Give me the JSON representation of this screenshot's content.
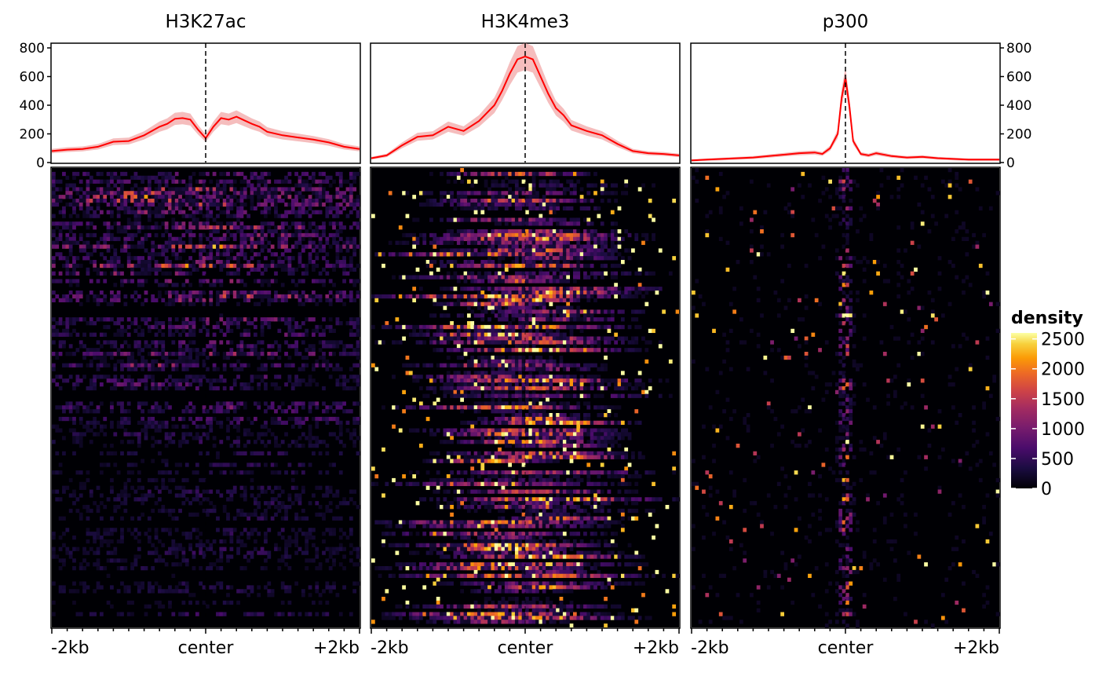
{
  "chart_data": [
    {
      "type": "line",
      "title": "H3K27ac",
      "xlabel": "",
      "ylabel": "",
      "x_tick_labels": [
        "-2kb",
        "center",
        "+2kb"
      ],
      "x_range": [
        -2000,
        2000
      ],
      "ylim": [
        0,
        800
      ],
      "y_ticks": [
        0,
        200,
        400,
        600,
        800
      ],
      "y_axis_side": "left",
      "center_marker": "dashed vertical line at center",
      "line_color": "#ff0000",
      "band_color": "#f2a7a7",
      "x": [
        -2000,
        -1800,
        -1600,
        -1400,
        -1200,
        -1000,
        -800,
        -600,
        -500,
        -400,
        -300,
        -200,
        -100,
        0,
        100,
        200,
        300,
        400,
        500,
        600,
        700,
        800,
        1000,
        1200,
        1400,
        1600,
        1800,
        2000
      ],
      "y": [
        80,
        90,
        95,
        110,
        145,
        150,
        190,
        250,
        270,
        305,
        310,
        300,
        230,
        170,
        250,
        310,
        300,
        320,
        295,
        270,
        250,
        215,
        190,
        175,
        160,
        140,
        110,
        95
      ],
      "heatmap_profile": "diffuse"
    },
    {
      "type": "line",
      "title": "H3K4me3",
      "xlabel": "",
      "ylabel": "",
      "x_tick_labels": [
        "-2kb",
        "center",
        "+2kb"
      ],
      "x_range": [
        -2000,
        2000
      ],
      "ylim": [
        0,
        800
      ],
      "y_ticks": [
        0,
        200,
        400,
        600,
        800
      ],
      "y_axis_side": "none",
      "center_marker": "dashed vertical line at center",
      "line_color": "#ff0000",
      "band_color": "#f2a7a7",
      "x": [
        -2000,
        -1800,
        -1600,
        -1400,
        -1200,
        -1000,
        -800,
        -600,
        -400,
        -300,
        -200,
        -100,
        0,
        100,
        200,
        300,
        400,
        500,
        600,
        800,
        1000,
        1200,
        1400,
        1600,
        1800,
        2000
      ],
      "y": [
        30,
        50,
        120,
        180,
        190,
        250,
        220,
        290,
        400,
        500,
        620,
        720,
        740,
        720,
        600,
        480,
        380,
        330,
        260,
        220,
        190,
        130,
        80,
        65,
        60,
        50
      ],
      "heatmap_profile": "centered"
    },
    {
      "type": "line",
      "title": "p300",
      "xlabel": "",
      "ylabel": "",
      "x_tick_labels": [
        "-2kb",
        "center",
        "+2kb"
      ],
      "x_range": [
        -2000,
        2000
      ],
      "ylim": [
        0,
        800
      ],
      "y_ticks": [
        0,
        200,
        400,
        600,
        800
      ],
      "y_axis_side": "right",
      "center_marker": "dashed vertical line at center",
      "line_color": "#ff0000",
      "band_color": "#f2a7a7",
      "x": [
        -2000,
        -1800,
        -1600,
        -1400,
        -1200,
        -1000,
        -800,
        -600,
        -400,
        -300,
        -200,
        -100,
        -50,
        0,
        50,
        100,
        200,
        300,
        400,
        600,
        800,
        1000,
        1200,
        1400,
        1600,
        1800,
        2000
      ],
      "y": [
        15,
        20,
        25,
        30,
        35,
        45,
        55,
        65,
        70,
        60,
        100,
        200,
        450,
        590,
        400,
        150,
        60,
        50,
        65,
        45,
        35,
        40,
        30,
        25,
        20,
        20,
        20
      ],
      "heatmap_profile": "sharp"
    }
  ],
  "legend": {
    "title": "density",
    "ticks": [
      0,
      500,
      1000,
      1500,
      2000,
      2500
    ],
    "tick_labels": [
      "0",
      "500",
      "1000",
      "1500",
      "2000",
      "2500"
    ],
    "range": [
      0,
      2600
    ],
    "colormap": "inferno"
  }
}
